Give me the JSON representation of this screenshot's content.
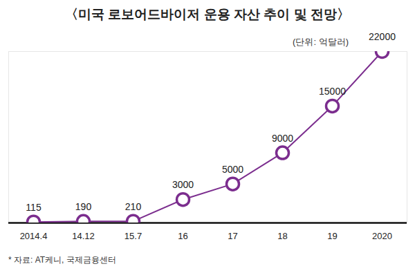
{
  "chart_data": {
    "type": "line",
    "title": "〈미국 로보어드바이저 운용 자산 추이 및 전망〉",
    "subtitle": "(단위: 억달러)",
    "annotations": [
      "* 자료: AT케니, 국제금융센터"
    ],
    "categories": [
      "2014.4",
      "14.12",
      "15.7",
      "16",
      "17",
      "18",
      "19",
      "2020"
    ],
    "values": [
      115,
      190,
      210,
      3000,
      5000,
      9000,
      15000,
      22000
    ],
    "color": "#7b2d8e",
    "marker": "circle",
    "data_labels": true,
    "tick_labels": "x",
    "grid": false,
    "ylim": [
      0,
      22000
    ],
    "yticks": []
  }
}
